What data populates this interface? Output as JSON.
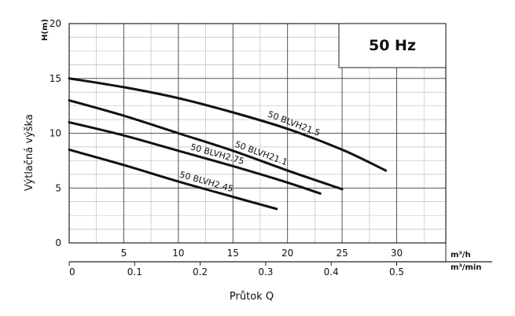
{
  "chart_data": {
    "type": "line",
    "frequency_label": "50 Hz",
    "y_axis": {
      "label": "H(m)",
      "title": "Výtlačná výška",
      "range": [
        0,
        20
      ],
      "ticks": [
        0,
        5,
        10,
        15,
        20
      ]
    },
    "x_axis_primary": {
      "unit": "m³/h",
      "range": [
        0,
        34.5
      ],
      "ticks": [
        5,
        10,
        15,
        20,
        25,
        30
      ]
    },
    "x_axis_secondary": {
      "unit": "m³/min",
      "ticks": [
        "0",
        "0.1",
        "0.2",
        "0.3",
        "0.4",
        "0.5"
      ],
      "tick_values": [
        0,
        6,
        12,
        18,
        24,
        30
      ]
    },
    "x_title": "Průtok Q",
    "grid": true,
    "series": [
      {
        "name": "50 BLVH21.5",
        "x": [
          0,
          5,
          10,
          15,
          20,
          25,
          29
        ],
        "y": [
          15,
          14.2,
          13.2,
          11.9,
          10.4,
          8.5,
          6.6
        ]
      },
      {
        "name": "50 BLVH21.1",
        "x": [
          0,
          5,
          10,
          15,
          20,
          25
        ],
        "y": [
          13,
          11.6,
          10,
          8.4,
          6.6,
          4.9
        ]
      },
      {
        "name": "50 BLVH2.75",
        "x": [
          0,
          5,
          10,
          15,
          20,
          23
        ],
        "y": [
          11,
          9.8,
          8.4,
          7,
          5.5,
          4.5
        ]
      },
      {
        "name": "50 BLVH2.45",
        "x": [
          0,
          5,
          10,
          15,
          19
        ],
        "y": [
          8.5,
          7.1,
          5.6,
          4.2,
          3.1
        ]
      }
    ]
  }
}
